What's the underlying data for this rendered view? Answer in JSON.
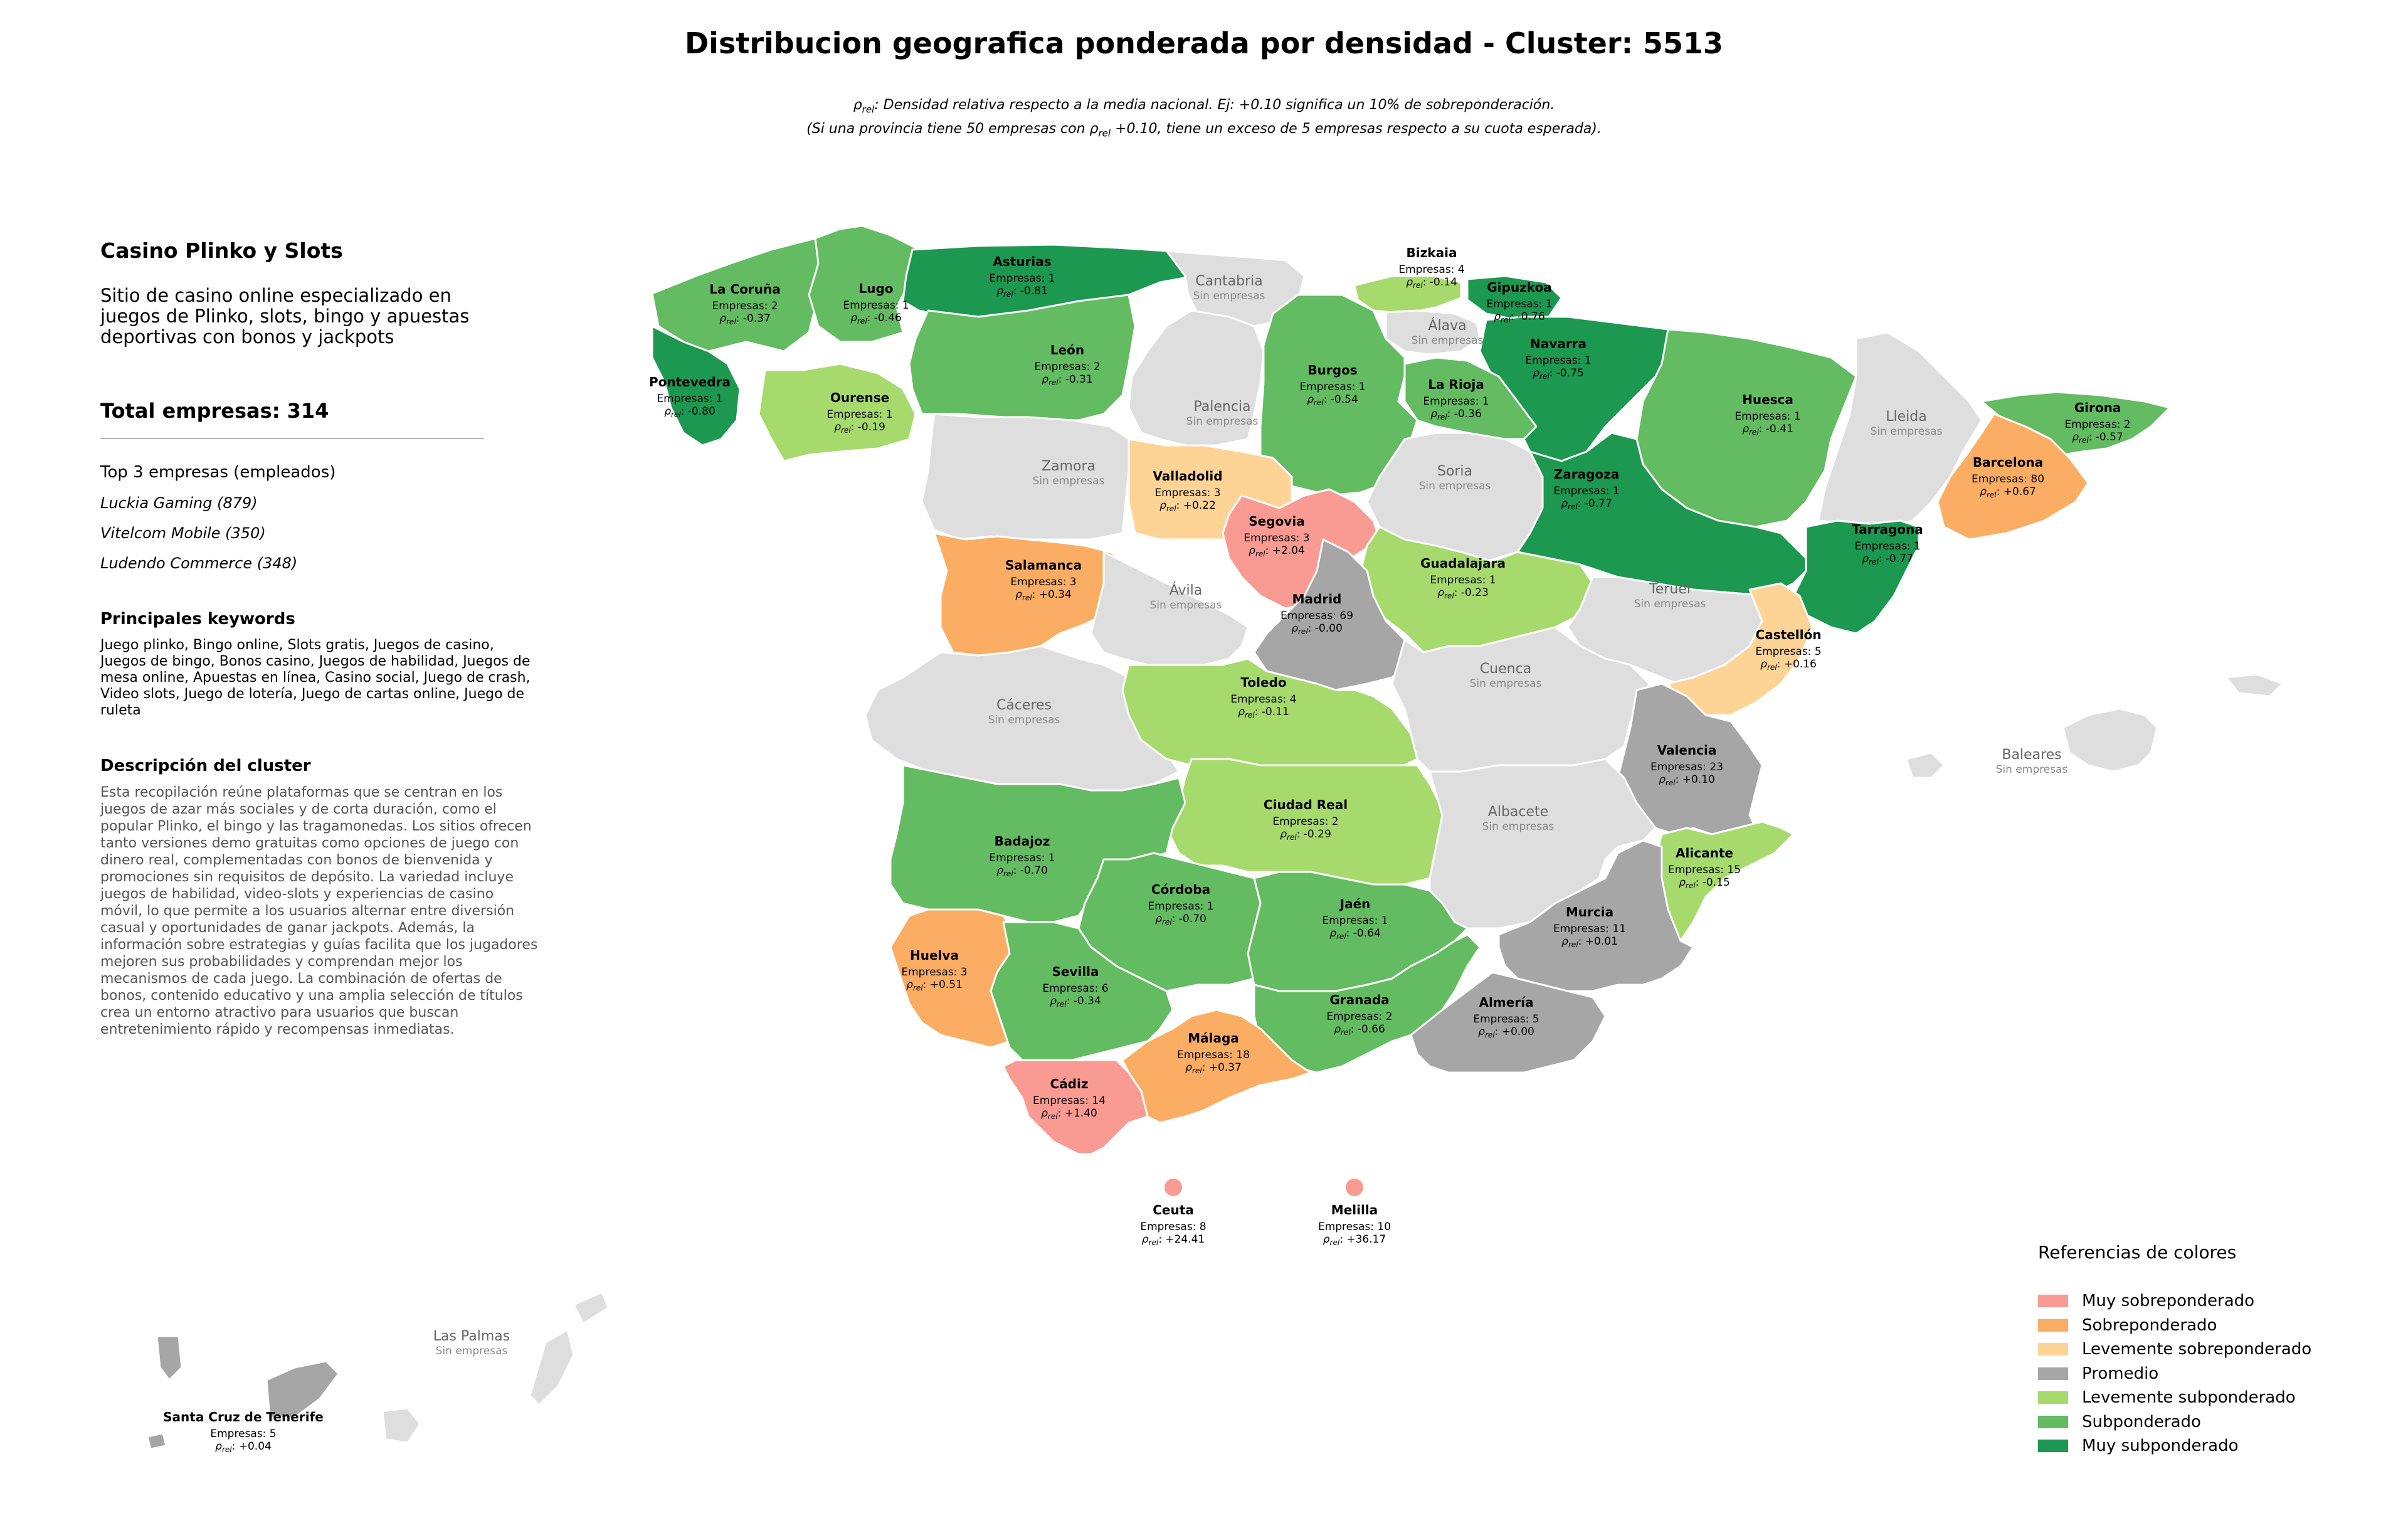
{
  "title": "Distribucion geografica ponderada por densidad - Cluster: 5513",
  "subtitle": {
    "line1": ": Densidad relativa respecto a la media nacional. Ej: +0.10 significa un 10% de sobreponderación.",
    "line2_a": "(Si una provincia tiene 50 empresas con",
    "line2_b": "+0.10, tiene un exceso de 5 empresas respecto a su cuota esperada).",
    "rho": "ρ",
    "rho_sub": "rel"
  },
  "sidebar": {
    "cluster_name": "Casino Plinko y Slots",
    "cluster_description": "Sitio de casino online especializado en juegos de Plinko, slots, bingo y apuestas deportivas con bonos y jackpots",
    "total": "Total empresas: 314",
    "top3_title": "Top 3 empresas (empleados)",
    "top3": [
      "Luckia Gaming (879)",
      "Vitelcom Mobile (350)",
      "Ludendo Commerce (348)"
    ],
    "keywords_title": "Principales keywords",
    "keywords": "Juego plinko, Bingo online, Slots gratis, Juegos de casino, Juegos de bingo, Bonos casino, Juegos de habilidad, Juegos de mesa online, Apuestas en línea, Casino social, Juego de crash, Video slots, Juego de lotería, Juego de cartas online, Juego de ruleta",
    "desc_title": "Descripción del cluster",
    "desc": "Esta recopilación reúne plataformas que se centran en los juegos de azar más sociales y de corta duración, como el popular Plinko, el bingo y las tragamonedas. Los sitios ofrecen tanto versiones demo gratuitas como opciones de juego con dinero real, complementadas con bonos de bienvenida y promociones sin requisitos de depósito. La variedad incluye juegos de habilidad, video-slots y experiencias de casino móvil, lo que permite a los usuarios alternar entre diversión casual y oportunidades de ganar jackpots. Además, la información sobre estrategias y guías facilita que los jugadores mejoren sus probabilidades y comprendan mejor los mecanismos de cada juego. La combinación de ofertas de bonos, contenido educativo y una amplia selección de títulos crea un entorno atractivo para usuarios que buscan entretenimiento rápido y recompensas inmediatas."
  },
  "colors": {
    "muy_sobre": "#f99a93",
    "sobre": "#fbad63",
    "lev_sobre": "#fdd496",
    "promedio": "#a6a6a6",
    "lev_sub": "#a7da6d",
    "sub": "#63bb62",
    "muy_sub": "#1c9851",
    "sin": "#dedede"
  },
  "legend": {
    "title": "Referencias de colores",
    "items": [
      {
        "label": "Muy sobreponderado",
        "color": "#f99a93"
      },
      {
        "label": "Sobreponderado",
        "color": "#fbad63"
      },
      {
        "label": "Levemente sobreponderado",
        "color": "#fdd496"
      },
      {
        "label": "Promedio",
        "color": "#a6a6a6"
      },
      {
        "label": "Levemente subponderado",
        "color": "#a7da6d"
      },
      {
        "label": "Subponderado",
        "color": "#63bb62"
      },
      {
        "label": "Muy subponderado",
        "color": "#1c9851"
      }
    ]
  },
  "provinces": [
    {
      "name": "La Coruña",
      "companies": "Empresas: 2",
      "rho": "-0.37",
      "cat": "sub"
    },
    {
      "name": "Lugo",
      "companies": "Empresas: 1",
      "rho": "-0.46",
      "cat": "sub"
    },
    {
      "name": "Asturias",
      "companies": "Empresas: 1",
      "rho": "-0.81",
      "cat": "muy_sub"
    },
    {
      "name": "Cantabria",
      "note": "Sin empresas",
      "cat": "sin"
    },
    {
      "name": "Bizkaia",
      "companies": "Empresas: 4",
      "rho": "-0.14",
      "cat": "lev_sub"
    },
    {
      "name": "Gipuzkoa",
      "companies": "Empresas: 1",
      "rho": "-0.76",
      "cat": "muy_sub"
    },
    {
      "name": "Álava",
      "note": "Sin empresas",
      "cat": "sin"
    },
    {
      "name": "Navarra",
      "companies": "Empresas: 1",
      "rho": "-0.75",
      "cat": "muy_sub"
    },
    {
      "name": "Pontevedra",
      "companies": "Empresas: 1",
      "rho": "-0.80",
      "cat": "muy_sub"
    },
    {
      "name": "Ourense",
      "companies": "Empresas: 1",
      "rho": "-0.19",
      "cat": "lev_sub"
    },
    {
      "name": "León",
      "companies": "Empresas: 2",
      "rho": "-0.31",
      "cat": "sub"
    },
    {
      "name": "Palencia",
      "note": "Sin empresas",
      "cat": "sin"
    },
    {
      "name": "Burgos",
      "companies": "Empresas: 1",
      "rho": "-0.54",
      "cat": "sub"
    },
    {
      "name": "La Rioja",
      "companies": "Empresas: 1",
      "rho": "-0.36",
      "cat": "sub"
    },
    {
      "name": "Huesca",
      "companies": "Empresas: 1",
      "rho": "-0.41",
      "cat": "sub"
    },
    {
      "name": "Lleida",
      "note": "Sin empresas",
      "cat": "sin"
    },
    {
      "name": "Girona",
      "companies": "Empresas: 2",
      "rho": "-0.57",
      "cat": "sub"
    },
    {
      "name": "Barcelona",
      "companies": "Empresas: 80",
      "rho": "+0.67",
      "cat": "sobre"
    },
    {
      "name": "Zamora",
      "note": "Sin empresas",
      "cat": "sin"
    },
    {
      "name": "Valladolid",
      "companies": "Empresas: 3",
      "rho": "+0.22",
      "cat": "lev_sobre"
    },
    {
      "name": "Soria",
      "note": "Sin empresas",
      "cat": "sin"
    },
    {
      "name": "Zaragoza",
      "companies": "Empresas: 1",
      "rho": "-0.77",
      "cat": "muy_sub"
    },
    {
      "name": "Tarragona",
      "companies": "Empresas: 1",
      "rho": "-0.77",
      "cat": "muy_sub"
    },
    {
      "name": "Salamanca",
      "companies": "Empresas: 3",
      "rho": "+0.34",
      "cat": "sobre"
    },
    {
      "name": "Segovia",
      "companies": "Empresas: 3",
      "rho": "+2.04",
      "cat": "muy_sobre"
    },
    {
      "name": "Guadalajara",
      "companies": "Empresas: 1",
      "rho": "-0.23",
      "cat": "lev_sub"
    },
    {
      "name": "Ávila",
      "note": "Sin empresas",
      "cat": "sin"
    },
    {
      "name": "Madrid",
      "companies": "Empresas: 69",
      "rho": "-0.00",
      "cat": "promedio"
    },
    {
      "name": "Teruel",
      "note": "Sin empresas",
      "cat": "sin"
    },
    {
      "name": "Castellón",
      "companies": "Empresas: 5",
      "rho": "+0.16",
      "cat": "lev_sobre"
    },
    {
      "name": "Cáceres",
      "note": "Sin empresas",
      "cat": "sin"
    },
    {
      "name": "Toledo",
      "companies": "Empresas: 4",
      "rho": "-0.11",
      "cat": "lev_sub"
    },
    {
      "name": "Cuenca",
      "note": "Sin empresas",
      "cat": "sin"
    },
    {
      "name": "Valencia",
      "companies": "Empresas: 23",
      "rho": "+0.10",
      "cat": "promedio"
    },
    {
      "name": "Baleares",
      "note": "Sin empresas",
      "cat": "sin"
    },
    {
      "name": "Ciudad Real",
      "companies": "Empresas: 2",
      "rho": "-0.29",
      "cat": "lev_sub"
    },
    {
      "name": "Badajoz",
      "companies": "Empresas: 1",
      "rho": "-0.70",
      "cat": "sub"
    },
    {
      "name": "Albacete",
      "note": "Sin empresas",
      "cat": "sin"
    },
    {
      "name": "Alicante",
      "companies": "Empresas: 15",
      "rho": "-0.15",
      "cat": "lev_sub"
    },
    {
      "name": "Córdoba",
      "companies": "Empresas: 1",
      "rho": "-0.70",
      "cat": "sub"
    },
    {
      "name": "Jaén",
      "companies": "Empresas: 1",
      "rho": "-0.64",
      "cat": "sub"
    },
    {
      "name": "Murcia",
      "companies": "Empresas: 11",
      "rho": "+0.01",
      "cat": "promedio"
    },
    {
      "name": "Huelva",
      "companies": "Empresas: 3",
      "rho": "+0.51",
      "cat": "sobre"
    },
    {
      "name": "Sevilla",
      "companies": "Empresas: 6",
      "rho": "-0.34",
      "cat": "sub"
    },
    {
      "name": "Granada",
      "companies": "Empresas: 2",
      "rho": "-0.66",
      "cat": "sub"
    },
    {
      "name": "Almería",
      "companies": "Empresas: 5",
      "rho": "+0.00",
      "cat": "promedio"
    },
    {
      "name": "Málaga",
      "companies": "Empresas: 18",
      "rho": "+0.37",
      "cat": "sobre"
    },
    {
      "name": "Cádiz",
      "companies": "Empresas: 14",
      "rho": "+1.40",
      "cat": "muy_sobre"
    },
    {
      "name": "Ceuta",
      "companies": "Empresas: 8",
      "rho": "+24.41",
      "cat": "muy_sobre"
    },
    {
      "name": "Melilla",
      "companies": "Empresas: 10",
      "rho": "+36.17",
      "cat": "muy_sobre"
    },
    {
      "name": "Las Palmas",
      "note": "Sin empresas",
      "cat": "sin"
    },
    {
      "name": "Santa Cruz de Tenerife",
      "companies": "Empresas: 5",
      "rho": "+0.04",
      "cat": "promedio"
    }
  ]
}
